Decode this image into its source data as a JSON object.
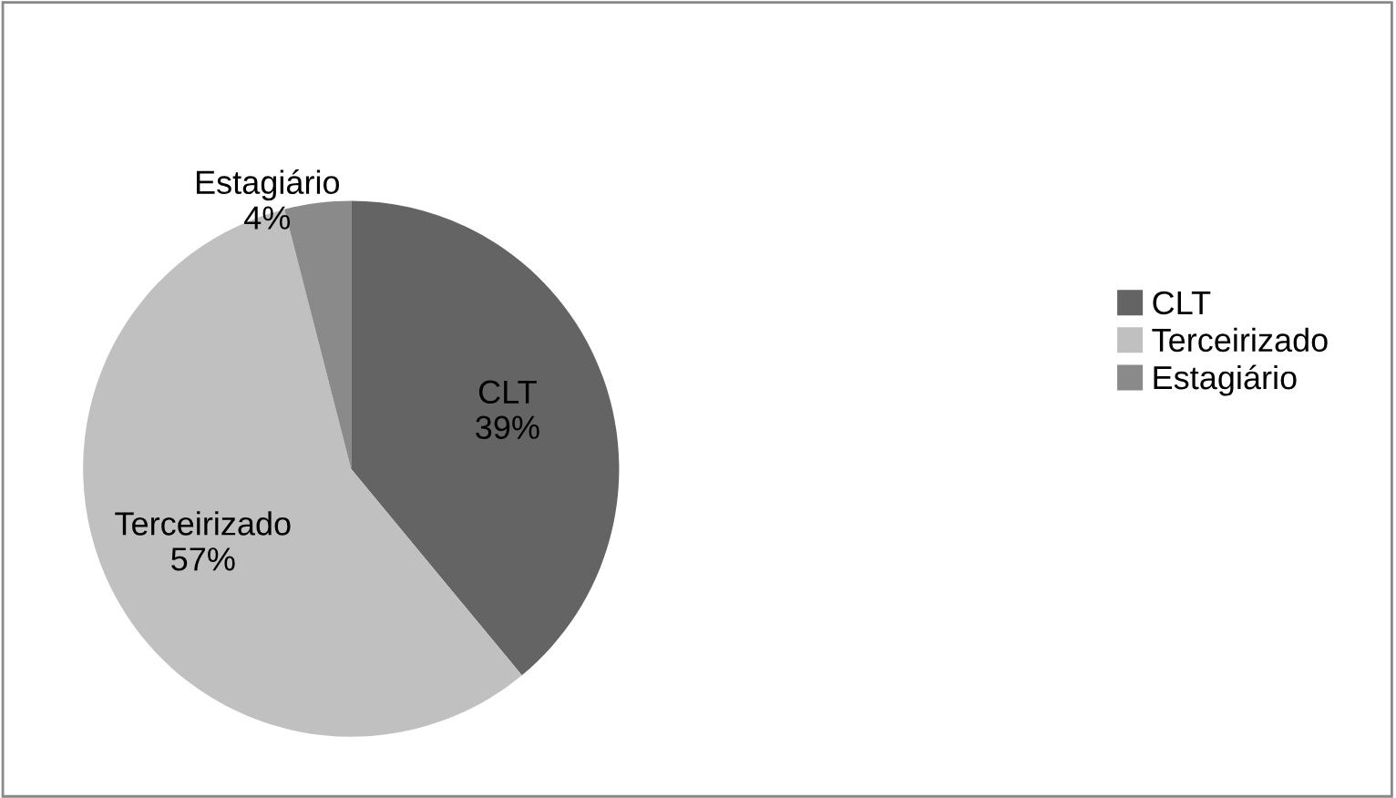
{
  "chart_data": {
    "type": "pie",
    "categories": [
      "CLT",
      "Terceirizado",
      "Estagiário"
    ],
    "values": [
      39,
      57,
      4
    ],
    "colors": [
      "#646464",
      "#c0c0c0",
      "#8a8a8a"
    ],
    "value_labels": [
      "39%",
      "57%",
      "4%"
    ],
    "legend": "right"
  }
}
